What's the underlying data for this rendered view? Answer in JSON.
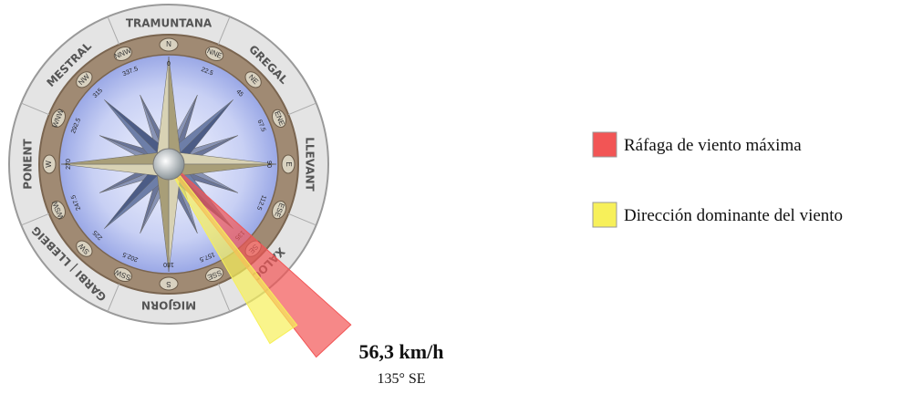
{
  "rose": {
    "winds": [
      "TRAMUNTANA",
      "GREGAL",
      "LLEVANT",
      "XALOC",
      "MIGJORN",
      "GARBI | LLEBEIG",
      "PONENT",
      "MESTRAL"
    ],
    "points": [
      {
        "abbr": "N",
        "degrees": "0"
      },
      {
        "abbr": "NNE",
        "degrees": "22.5"
      },
      {
        "abbr": "NE",
        "degrees": "45"
      },
      {
        "abbr": "ENE",
        "degrees": "67.5"
      },
      {
        "abbr": "E",
        "degrees": "90"
      },
      {
        "abbr": "ESE",
        "degrees": "112.5"
      },
      {
        "abbr": "SE",
        "degrees": "135"
      },
      {
        "abbr": "SSE",
        "degrees": "157.5"
      },
      {
        "abbr": "S",
        "degrees": "180"
      },
      {
        "abbr": "SSW",
        "degrees": "202.5"
      },
      {
        "abbr": "SW",
        "degrees": "225"
      },
      {
        "abbr": "WSW",
        "degrees": "247.5"
      },
      {
        "abbr": "W",
        "degrees": "270"
      },
      {
        "abbr": "WNW",
        "degrees": "292.5"
      },
      {
        "abbr": "NW",
        "degrees": "315"
      },
      {
        "abbr": "NNW",
        "degrees": "337.5"
      }
    ]
  },
  "indicators": [
    {
      "name": "Ráfaga de viento máxima",
      "color": "#f25555",
      "direction": 137
    },
    {
      "name": "Dirección dominante del viento",
      "color": "#f7f05a",
      "direction": 146
    }
  ],
  "reading": {
    "speed": "56,3 km/h",
    "direction": "135° SE"
  }
}
